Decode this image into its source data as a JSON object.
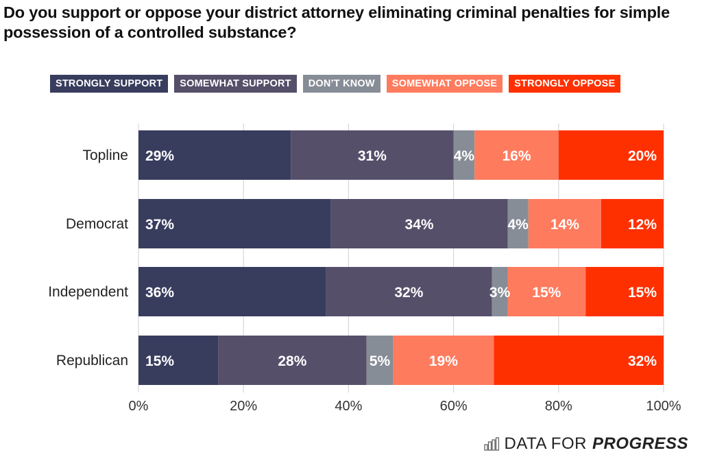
{
  "title": "Do you support or oppose your district attorney eliminating criminal penalties for simple possession of a controlled substance?",
  "legend": [
    {
      "label": "STRONGLY SUPPORT",
      "color": "#383d5e"
    },
    {
      "label": "SOMEWHAT SUPPORT",
      "color": "#554f6a"
    },
    {
      "label": "DON’T KNOW",
      "color": "#878d96"
    },
    {
      "label": "SOMEWHAT OPPOSE",
      "color": "#ff7b5e"
    },
    {
      "label": "STRONGLY OPPOSE",
      "color": "#ff3000"
    }
  ],
  "logo": {
    "text_light": "DATA FOR",
    "text_bold": "PROGRESS",
    "icon": "bar-chart-icon"
  },
  "chart_data": {
    "type": "bar",
    "orientation": "horizontal",
    "stacked": true,
    "title": "Do you support or oppose your district attorney eliminating criminal penalties for simple possession of a controlled substance?",
    "xlabel": "",
    "ylabel": "",
    "xlim": [
      0,
      100
    ],
    "x_ticks": [
      "0%",
      "20%",
      "40%",
      "60%",
      "80%",
      "100%"
    ],
    "grid": true,
    "legend_position": "top",
    "categories": [
      "Topline",
      "Democrat",
      "Independent",
      "Republican"
    ],
    "series": [
      {
        "name": "STRONGLY SUPPORT",
        "values": [
          29,
          37,
          36,
          15
        ]
      },
      {
        "name": "SOMEWHAT SUPPORT",
        "values": [
          31,
          34,
          32,
          28
        ]
      },
      {
        "name": "DON’T KNOW",
        "values": [
          4,
          4,
          3,
          5
        ]
      },
      {
        "name": "SOMEWHAT OPPOSE",
        "values": [
          16,
          14,
          15,
          19
        ]
      },
      {
        "name": "STRONGLY OPPOSE",
        "values": [
          20,
          12,
          15,
          32
        ]
      }
    ],
    "value_suffix": "%"
  }
}
